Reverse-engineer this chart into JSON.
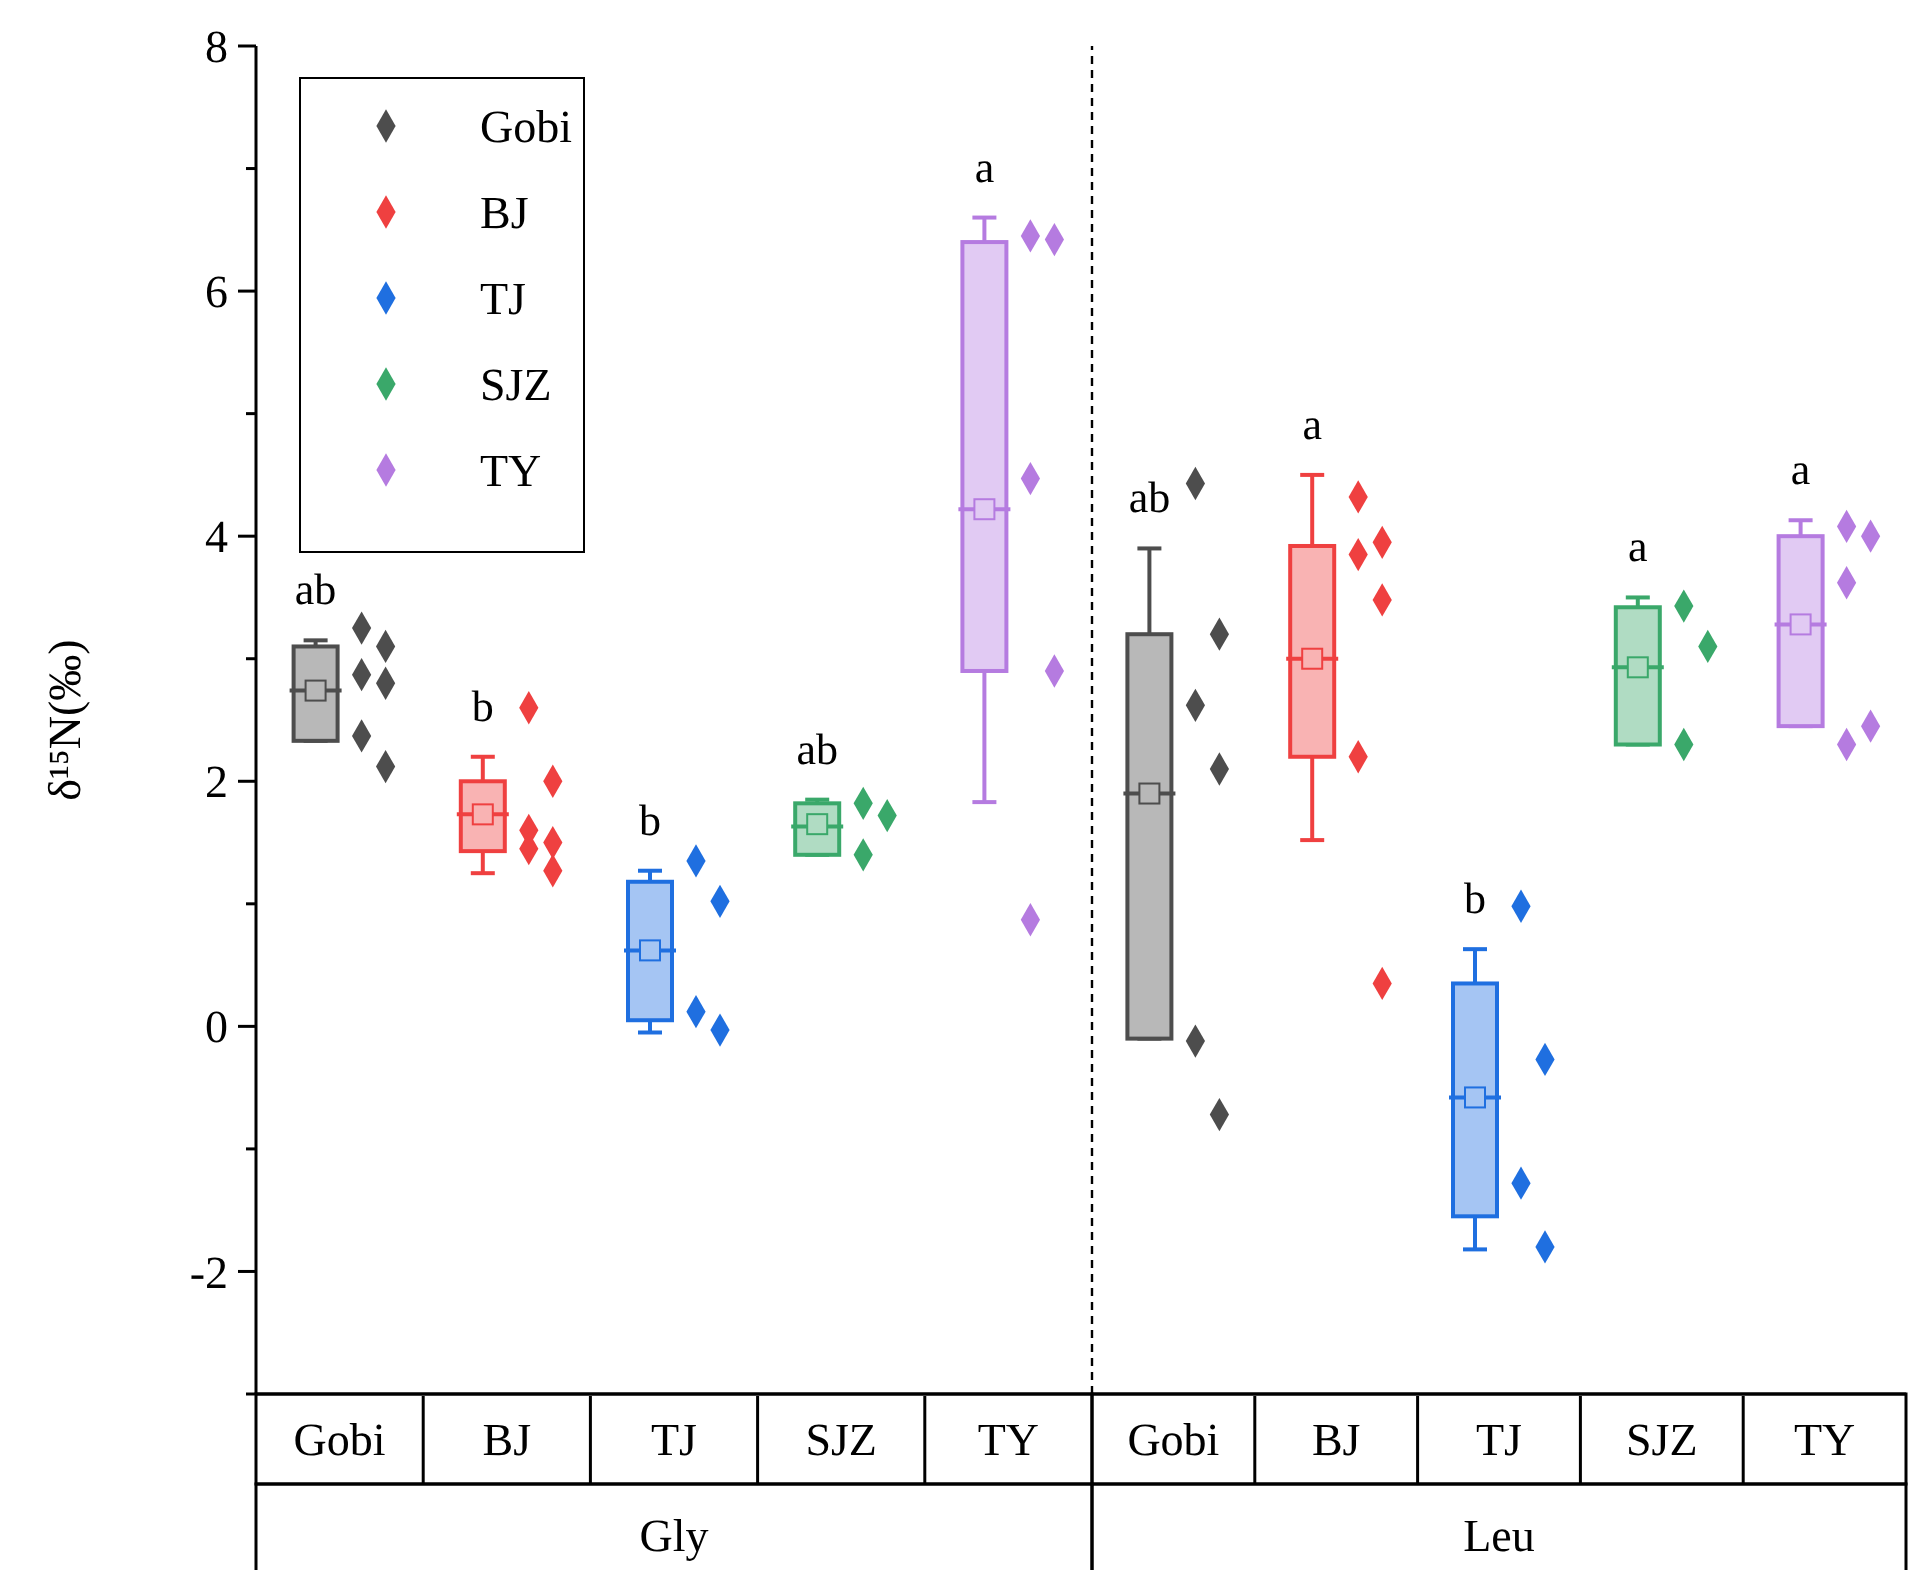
{
  "chart_data": [
    {
      "type": "box",
      "xlabel": "Gly",
      "ylabel": "δ¹⁵N(‰)",
      "categories": [
        "Gobi",
        "BJ",
        "TJ",
        "SJZ",
        "TY"
      ],
      "colors": [
        "#4d4d4d",
        "#ef4040",
        "#1f6fe0",
        "#3aa86a",
        "#b57be0"
      ],
      "boxes": [
        {
          "low": 2.33,
          "q1": 2.33,
          "median": 2.74,
          "q3": 3.1,
          "high": 3.15,
          "mean": 2.74
        },
        {
          "low": 1.25,
          "q1": 1.43,
          "median": 1.73,
          "q3": 2.0,
          "high": 2.2,
          "mean": 1.73
        },
        {
          "low": -0.05,
          "q1": 0.05,
          "median": 0.62,
          "q3": 1.18,
          "high": 1.27,
          "mean": 0.62
        },
        {
          "low": 1.4,
          "q1": 1.4,
          "median": 1.63,
          "q3": 1.82,
          "high": 1.85,
          "mean": 1.65
        },
        {
          "low": 1.83,
          "q1": 2.9,
          "median": 4.22,
          "q3": 6.4,
          "high": 6.6,
          "mean": 4.22
        }
      ],
      "ylim": [
        -3,
        8
      ],
      "yticks": [
        {
          "value": -3,
          "label": null
        },
        -2,
        {
          "value": -1,
          "label": null
        },
        0,
        {
          "value": 1,
          "label": null
        },
        2,
        {
          "value": 3,
          "label": null
        },
        4,
        {
          "value": 5,
          "label": null
        },
        6,
        {
          "value": 7,
          "label": null
        },
        8
      ],
      "legend": "top left",
      "marker": "diamond",
      "series": [
        {
          "name": "Gobi",
          "type": "scatter",
          "color": "#4d4d4d",
          "x": [
            "Gobi",
            "Gobi",
            "Gobi",
            "Gobi",
            "Gobi",
            "Gobi"
          ],
          "values": [
            3.25,
            3.1,
            2.87,
            2.8,
            2.37,
            2.12
          ]
        },
        {
          "name": "BJ",
          "type": "scatter",
          "color": "#ef4040",
          "x": [
            "BJ",
            "BJ",
            "BJ",
            "BJ",
            "BJ",
            "BJ"
          ],
          "values": [
            2.6,
            2.0,
            1.6,
            1.5,
            1.45,
            1.27
          ]
        },
        {
          "name": "TJ",
          "type": "scatter",
          "color": "#1f6fe0",
          "x": [
            "TJ",
            "TJ",
            "TJ",
            "TJ"
          ],
          "values": [
            1.35,
            1.02,
            0.12,
            -0.03
          ]
        },
        {
          "name": "SJZ",
          "type": "scatter",
          "color": "#3aa86a",
          "x": [
            "SJZ",
            "SJZ",
            "SJZ"
          ],
          "values": [
            1.82,
            1.72,
            1.4
          ]
        },
        {
          "name": "TY",
          "type": "scatter",
          "color": "#b57be0",
          "x": [
            "TY",
            "TY",
            "TY",
            "TY",
            "TY"
          ],
          "values": [
            6.45,
            6.42,
            4.47,
            2.9,
            0.87
          ]
        }
      ],
      "annotations": [
        "ab",
        "b",
        "b",
        "ab",
        "a"
      ]
    },
    {
      "type": "box",
      "xlabel": "Leu",
      "categories": [
        "Gobi",
        "BJ",
        "TJ",
        "SJZ",
        "TY"
      ],
      "colors": [
        "#4d4d4d",
        "#ef4040",
        "#1f6fe0",
        "#3aa86a",
        "#b57be0"
      ],
      "boxes": [
        {
          "low": -0.1,
          "q1": -0.1,
          "median": 1.9,
          "q3": 3.2,
          "high": 3.9,
          "mean": 1.9
        },
        {
          "low": 1.52,
          "q1": 2.2,
          "median": 3.0,
          "q3": 3.92,
          "high": 4.5,
          "mean": 3.0
        },
        {
          "low": -1.82,
          "q1": -1.55,
          "median": -0.58,
          "q3": 0.35,
          "high": 0.63,
          "mean": -0.58
        },
        {
          "low": 2.3,
          "q1": 2.3,
          "median": 2.93,
          "q3": 3.42,
          "high": 3.5,
          "mean": 2.93
        },
        {
          "low": 2.45,
          "q1": 2.45,
          "median": 3.28,
          "q3": 4.0,
          "high": 4.13,
          "mean": 3.28
        }
      ],
      "ylim": [
        -3,
        8
      ],
      "tick_labels": "x",
      "marker": "diamond",
      "series": [
        {
          "type": "scatter",
          "color": "#4d4d4d",
          "x": [
            "Gobi",
            "Gobi",
            "Gobi",
            "Gobi",
            "Gobi",
            "Gobi"
          ],
          "values": [
            4.43,
            3.2,
            2.62,
            2.1,
            -0.12,
            -0.72
          ]
        },
        {
          "type": "scatter",
          "color": "#ef4040",
          "x": [
            "BJ",
            "BJ",
            "BJ",
            "BJ",
            "BJ",
            "BJ"
          ],
          "values": [
            4.32,
            3.95,
            3.85,
            3.48,
            2.2,
            0.35
          ]
        },
        {
          "type": "scatter",
          "color": "#1f6fe0",
          "x": [
            "TJ",
            "TJ",
            "TJ",
            "TJ"
          ],
          "values": [
            0.98,
            -0.27,
            -1.28,
            -1.8
          ]
        },
        {
          "type": "scatter",
          "color": "#3aa86a",
          "x": [
            "SJZ",
            "SJZ",
            "SJZ"
          ],
          "values": [
            3.43,
            3.1,
            2.3
          ]
        },
        {
          "type": "scatter",
          "color": "#b57be0",
          "x": [
            "TY",
            "TY",
            "TY",
            "TY",
            "TY"
          ],
          "values": [
            4.08,
            4.0,
            3.62,
            2.45,
            2.3
          ]
        }
      ],
      "annotations": [
        "ab",
        "a",
        "b",
        "a",
        "a"
      ]
    }
  ]
}
